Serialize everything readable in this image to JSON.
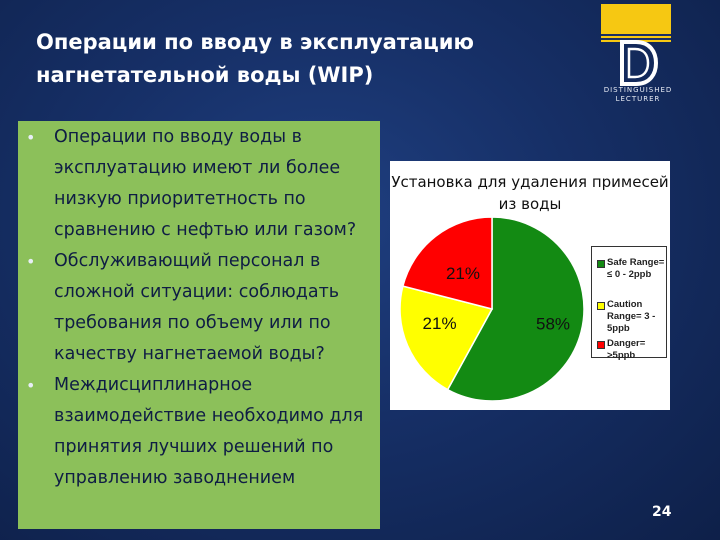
{
  "slide": {
    "title_lines": [
      "Операции по вводу в эксплуатацию",
      "нагнетательной воды (WIP)"
    ],
    "logo_text_lines": [
      "DISTINGUISHED",
      "LECTURER"
    ],
    "page_number": "24"
  },
  "bullets": [
    "Операции по вводу воды в эксплуатацию имеют ли более низкую приоритетность по сравнению с нефтью или газом?",
    "Обслуживающий персонал в сложной ситуации: соблюдать требования по объему или по качеству нагнетаемой воды?",
    "Междисциплинарное взаимодействие необходимо для принятия лучших решений по управлению заводнением"
  ],
  "colors": {
    "green": "#138a13",
    "yellow": "#ffff00",
    "red": "#ff0000",
    "panel": "#8cc05a"
  },
  "chart_data": {
    "type": "pie",
    "title": "Установка для удаления примесей из воды",
    "slices": [
      {
        "label": "Safe Range= ≤ 0 - 2ppb",
        "value": 58,
        "display": "58%",
        "color": "#138a13"
      },
      {
        "label": "Caution Range= 3 - 5ppb",
        "value": 21,
        "display": "21%",
        "color": "#ffff00"
      },
      {
        "label": "Danger= >5ppb",
        "value": 21,
        "display": "21%",
        "color": "#ff0000"
      }
    ],
    "legend_position": "right"
  }
}
